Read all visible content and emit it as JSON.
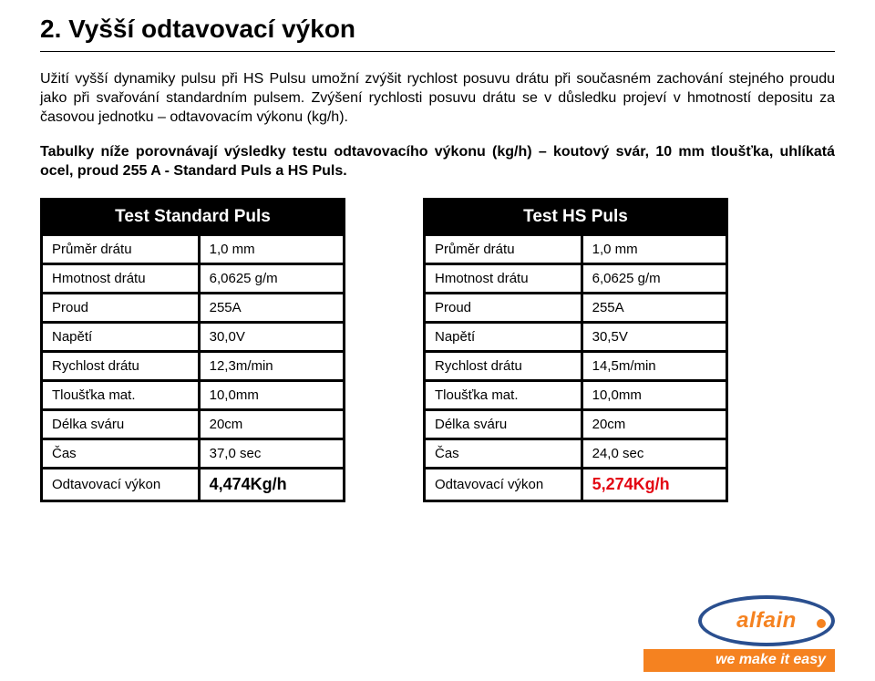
{
  "heading": "2. Vyšší odtavovací výkon",
  "para1": "Užití vyšší dynamiky pulsu při HS Pulsu umožní zvýšit rychlost posuvu drátu při současném zachování stejného proudu jako při svařování standardním pulsem. Zvýšení rychlosti posuvu drátu se v důsledku projeví v hmotností depositu za časovou jednotku – odtavovacím výkonu (kg/h).",
  "para2": "Tabulky níže porovnávají výsledky testu odtavovacího výkonu (kg/h) – koutový svár, 10 mm tloušťka, uhlíkatá ocel, proud 255 A - Standard Puls a HS Puls.",
  "tableLeft": {
    "title": "Test Standard Puls",
    "rows": [
      {
        "label": "Průměr drátu",
        "value": "1,0 mm"
      },
      {
        "label": "Hmotnost drátu",
        "value": "6,0625 g/m"
      },
      {
        "label": "Proud",
        "value": "255A"
      },
      {
        "label": "Napětí",
        "value": "30,0V"
      },
      {
        "label": "Rychlost drátu",
        "value": "12,3m/min"
      },
      {
        "label": "Tloušťka mat.",
        "value": "10,0mm"
      },
      {
        "label": "Délka sváru",
        "value": "20cm"
      },
      {
        "label": "Čas",
        "value": "37,0 sec"
      }
    ],
    "resultLabel": "Odtavovací výkon",
    "resultValue": "4,474Kg/h",
    "resultColor": "#000000"
  },
  "tableRight": {
    "title": "Test HS Puls",
    "rows": [
      {
        "label": "Průměr drátu",
        "value": "1,0 mm"
      },
      {
        "label": "Hmotnost drátu",
        "value": "6,0625 g/m"
      },
      {
        "label": "Proud",
        "value": "255A"
      },
      {
        "label": "Napětí",
        "value": "30,5V"
      },
      {
        "label": "Rychlost drátu",
        "value": "14,5m/min"
      },
      {
        "label": "Tloušťka mat.",
        "value": "10,0mm"
      },
      {
        "label": "Délka sváru",
        "value": "20cm"
      },
      {
        "label": "Čas",
        "value": "24,0 sec"
      }
    ],
    "resultLabel": "Odtavovací výkon",
    "resultValue": "5,274Kg/h",
    "resultColor": "#e30613"
  },
  "logo": {
    "brand": "alfain",
    "tagline": "we make it easy",
    "ellipseBorder": "#2a4f8f",
    "accent": "#f58220"
  }
}
